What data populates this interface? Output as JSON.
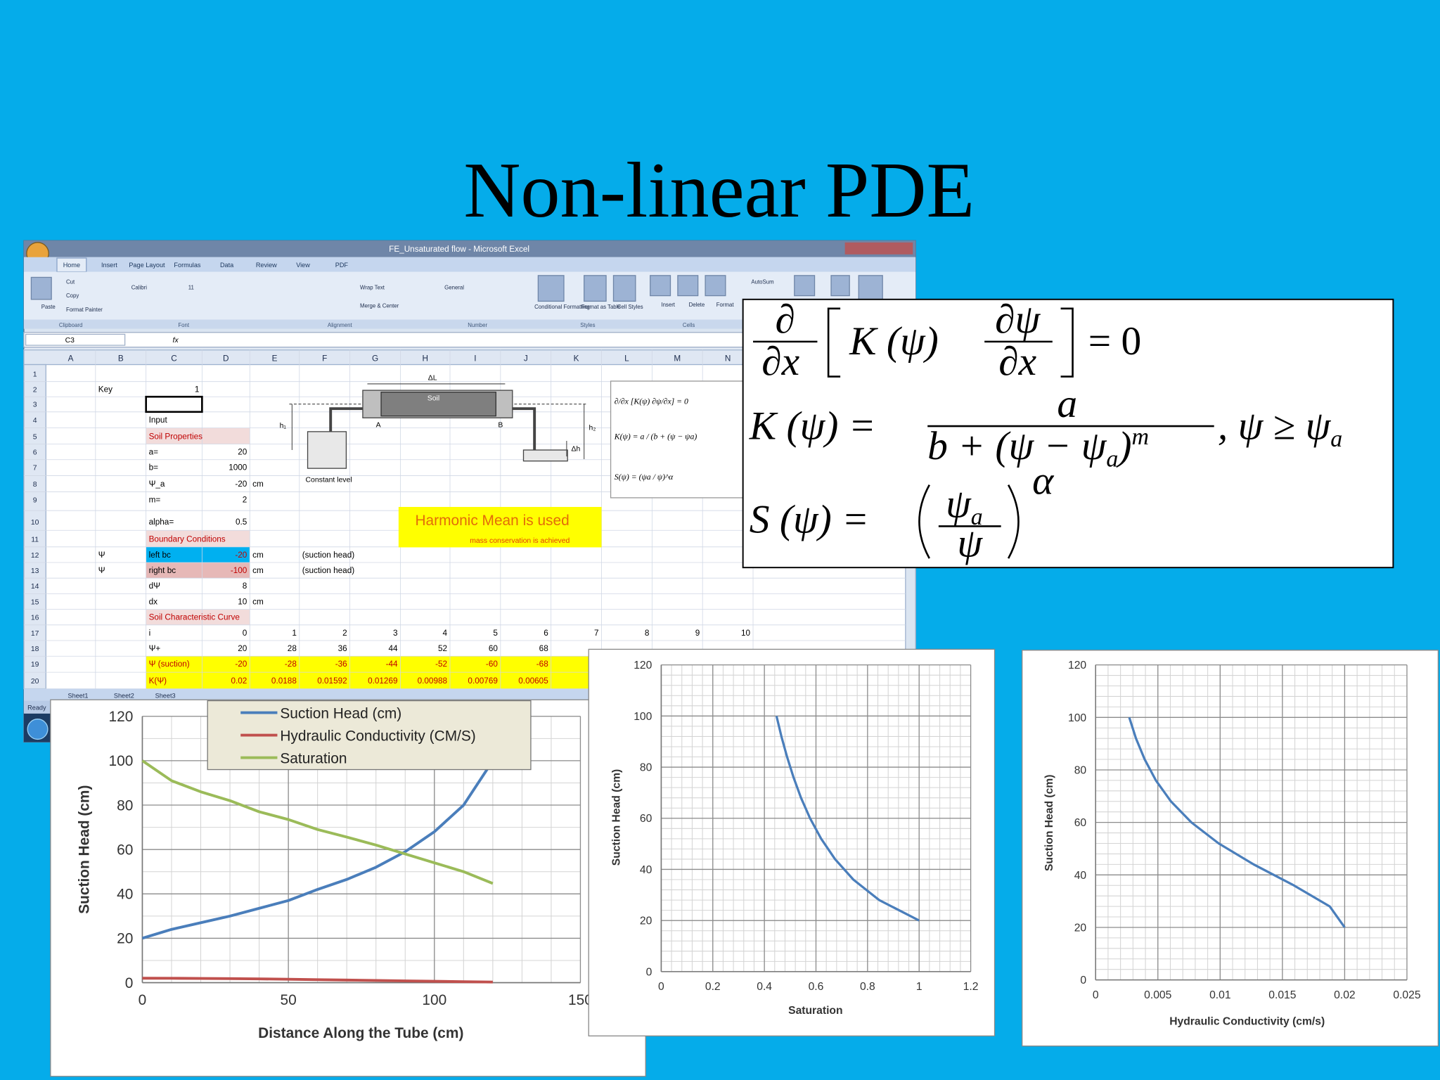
{
  "title": "Non-linear PDE",
  "excel": {
    "window_title": "FE_Unsaturated flow - Microsoft Excel",
    "tabs": [
      "Home",
      "Insert",
      "Page Layout",
      "Formulas",
      "Data",
      "Review",
      "View",
      "PDF"
    ],
    "ribbon_buttons": [
      "Paste",
      "Cut",
      "Copy",
      "Format Painter",
      "Calibri",
      "11",
      "Wrap Text",
      "Merge & Center",
      "General",
      "Conditional Formatting",
      "Format as Table",
      "Cell Styles",
      "Insert",
      "Delete",
      "Format",
      "AutoSum"
    ],
    "ribbon_groups": [
      "Clipboard",
      "Font",
      "Alignment",
      "Number",
      "Styles",
      "Cells"
    ],
    "name_box": "C3",
    "fx": "fx",
    "columns": [
      "A",
      "B",
      "C",
      "D",
      "E",
      "F",
      "G",
      "H",
      "I",
      "J",
      "K",
      "L",
      "M",
      "N"
    ],
    "row_numbers": [
      1,
      2,
      3,
      4,
      5,
      6,
      7,
      8,
      9,
      10,
      11,
      12,
      13,
      14,
      15,
      16,
      17,
      18,
      19,
      20
    ],
    "rows": [
      [],
      [
        null,
        "Key",
        1
      ],
      [],
      [
        null,
        null,
        "Input"
      ],
      [
        null,
        null,
        "Soil Properties"
      ],
      [
        null,
        null,
        "a=",
        20
      ],
      [
        null,
        null,
        "b=",
        1000
      ],
      [
        null,
        null,
        "Ψ_a",
        -20,
        "cm"
      ],
      [
        null,
        null,
        "m=",
        2
      ],
      [
        null,
        null,
        "alpha=",
        0.5
      ],
      [
        null,
        null,
        "Boundary Conditions"
      ],
      [
        null,
        "Ψ",
        "left bc",
        -20,
        "cm",
        "(suction head)"
      ],
      [
        null,
        "Ψ",
        "right bc",
        -100,
        "cm",
        "(suction head)"
      ],
      [
        null,
        null,
        "dΨ",
        8
      ],
      [
        null,
        null,
        "dx",
        10,
        "cm"
      ],
      [
        null,
        null,
        "Soil Characteristic Curve"
      ],
      [
        null,
        null,
        "i",
        0,
        1,
        2,
        3,
        4,
        5,
        6,
        7,
        8,
        9,
        10
      ],
      [
        null,
        null,
        "Ψ+",
        20,
        28,
        36,
        44,
        52,
        60,
        68
      ],
      [
        null,
        null,
        "Ψ (suction)",
        -20,
        -28,
        -36,
        -44,
        -52,
        -60,
        -68
      ],
      [
        null,
        null,
        "K(Ψ)",
        0.02,
        0.0188,
        0.01592,
        0.01269,
        0.00988,
        0.00769,
        0.00605
      ]
    ],
    "sheet_tabs": [
      "Sheet1",
      "Sheet2",
      "Sheet3"
    ],
    "status": "Ready",
    "diagram": {
      "length": "ΔL",
      "soil": "Soil",
      "a": "A",
      "b": "B",
      "h1": "h₁",
      "h2": "h₂",
      "dh": "Δh",
      "level": "Constant level"
    },
    "note": {
      "heading": "Harmonic Mean is used",
      "sub": "mass conservation is achieved"
    },
    "equation_image": [
      "∂/∂x [K(ψ) ∂ψ/∂x] = 0",
      "K(ψ) = a / (b + (ψ − ψa)",
      "S(ψ) = (ψa / ψ)^α"
    ]
  },
  "equations": {
    "eq1": {
      "d_num": "∂",
      "d_den": "∂x",
      "k": "K (ψ)",
      "dpsi_num": "∂ψ",
      "dpsi_den": "∂x",
      "rhs": "= 0"
    },
    "eq2": {
      "lhs": "K (ψ) =",
      "num": "a",
      "den": "b + (ψ − ψ",
      "den_sub": "a",
      "den_close": ")",
      "den_sup": "m",
      "cond": ", ψ ≥ ψ",
      "cond_sub": "a"
    },
    "eq3": {
      "lhs": "S (ψ) =",
      "num": "ψ",
      "num_sub": "a",
      "den": "ψ",
      "sup": "α"
    }
  },
  "chart_data": [
    {
      "type": "line",
      "x": [
        0,
        10,
        20,
        30,
        40,
        50,
        60,
        70,
        80,
        90,
        100,
        110,
        120
      ],
      "series": [
        {
          "name": "Suction Head (cm)",
          "color": "#4a7ebb",
          "values": [
            20,
            24,
            27,
            30,
            33.5,
            37,
            42,
            46.5,
            52,
            59,
            68,
            80,
            100
          ]
        },
        {
          "name": "Hydraulic Conductivity (CM/S)",
          "color": "#c0504d",
          "values": [
            2,
            1.97,
            1.9,
            1.82,
            1.69,
            1.55,
            1.35,
            1.17,
            0.99,
            0.79,
            0.61,
            0.43,
            0.27
          ]
        },
        {
          "name": "Saturation",
          "color": "#9bbb59",
          "values": [
            100,
            91,
            86,
            82,
            77,
            73.5,
            69,
            65.6,
            62,
            58,
            54,
            50,
            44.7
          ]
        }
      ],
      "xlim": [
        0,
        150
      ],
      "xticks": [
        0,
        50,
        100,
        150
      ],
      "ylim": [
        0,
        120
      ],
      "yticks": [
        0,
        20,
        40,
        60,
        80,
        100,
        120
      ],
      "grid": true,
      "minor_grid": {
        "x": 10,
        "y": 10
      },
      "legend": "top",
      "xlabel": "Distance Along the Tube (cm)",
      "ylabel": "Suction Head (cm)"
    },
    {
      "type": "line",
      "x": [
        1,
        0.845,
        0.745,
        0.674,
        0.62,
        0.577,
        0.542,
        0.513,
        0.488,
        0.466,
        0.447
      ],
      "values": [
        20,
        28,
        36,
        44,
        52,
        60,
        68,
        76,
        84,
        92,
        100
      ],
      "color": "#4a7ebb",
      "xlim": [
        0,
        1.2
      ],
      "xticks": [
        0,
        0.2,
        0.4,
        0.6,
        0.8,
        1,
        1.2
      ],
      "ylim": [
        0,
        120
      ],
      "yticks": [
        0,
        20,
        40,
        60,
        80,
        100,
        120
      ],
      "grid": true,
      "minor_grid": {
        "x": 0.04,
        "y": 4
      },
      "xlabel": "Saturation",
      "ylabel": "Suction Head (cm)"
    },
    {
      "type": "line",
      "x": [
        0.02,
        0.0188,
        0.01592,
        0.01269,
        0.00988,
        0.00769,
        0.00605,
        0.00484,
        0.00394,
        0.00324,
        0.0027
      ],
      "values": [
        20,
        28,
        36,
        44,
        52,
        60,
        68,
        76,
        84,
        92,
        100
      ],
      "color": "#4a7ebb",
      "xlim": [
        0,
        0.025
      ],
      "xticks": [
        0,
        0.005,
        0.01,
        0.015,
        0.02,
        0.025
      ],
      "ylim": [
        0,
        120
      ],
      "yticks": [
        0,
        20,
        40,
        60,
        80,
        100,
        120
      ],
      "grid": true,
      "minor_grid": {
        "x": 0.001,
        "y": 4
      },
      "xlabel": "Hydraulic Conductivity (cm/s)",
      "ylabel": "Suction Head (cm)"
    }
  ]
}
